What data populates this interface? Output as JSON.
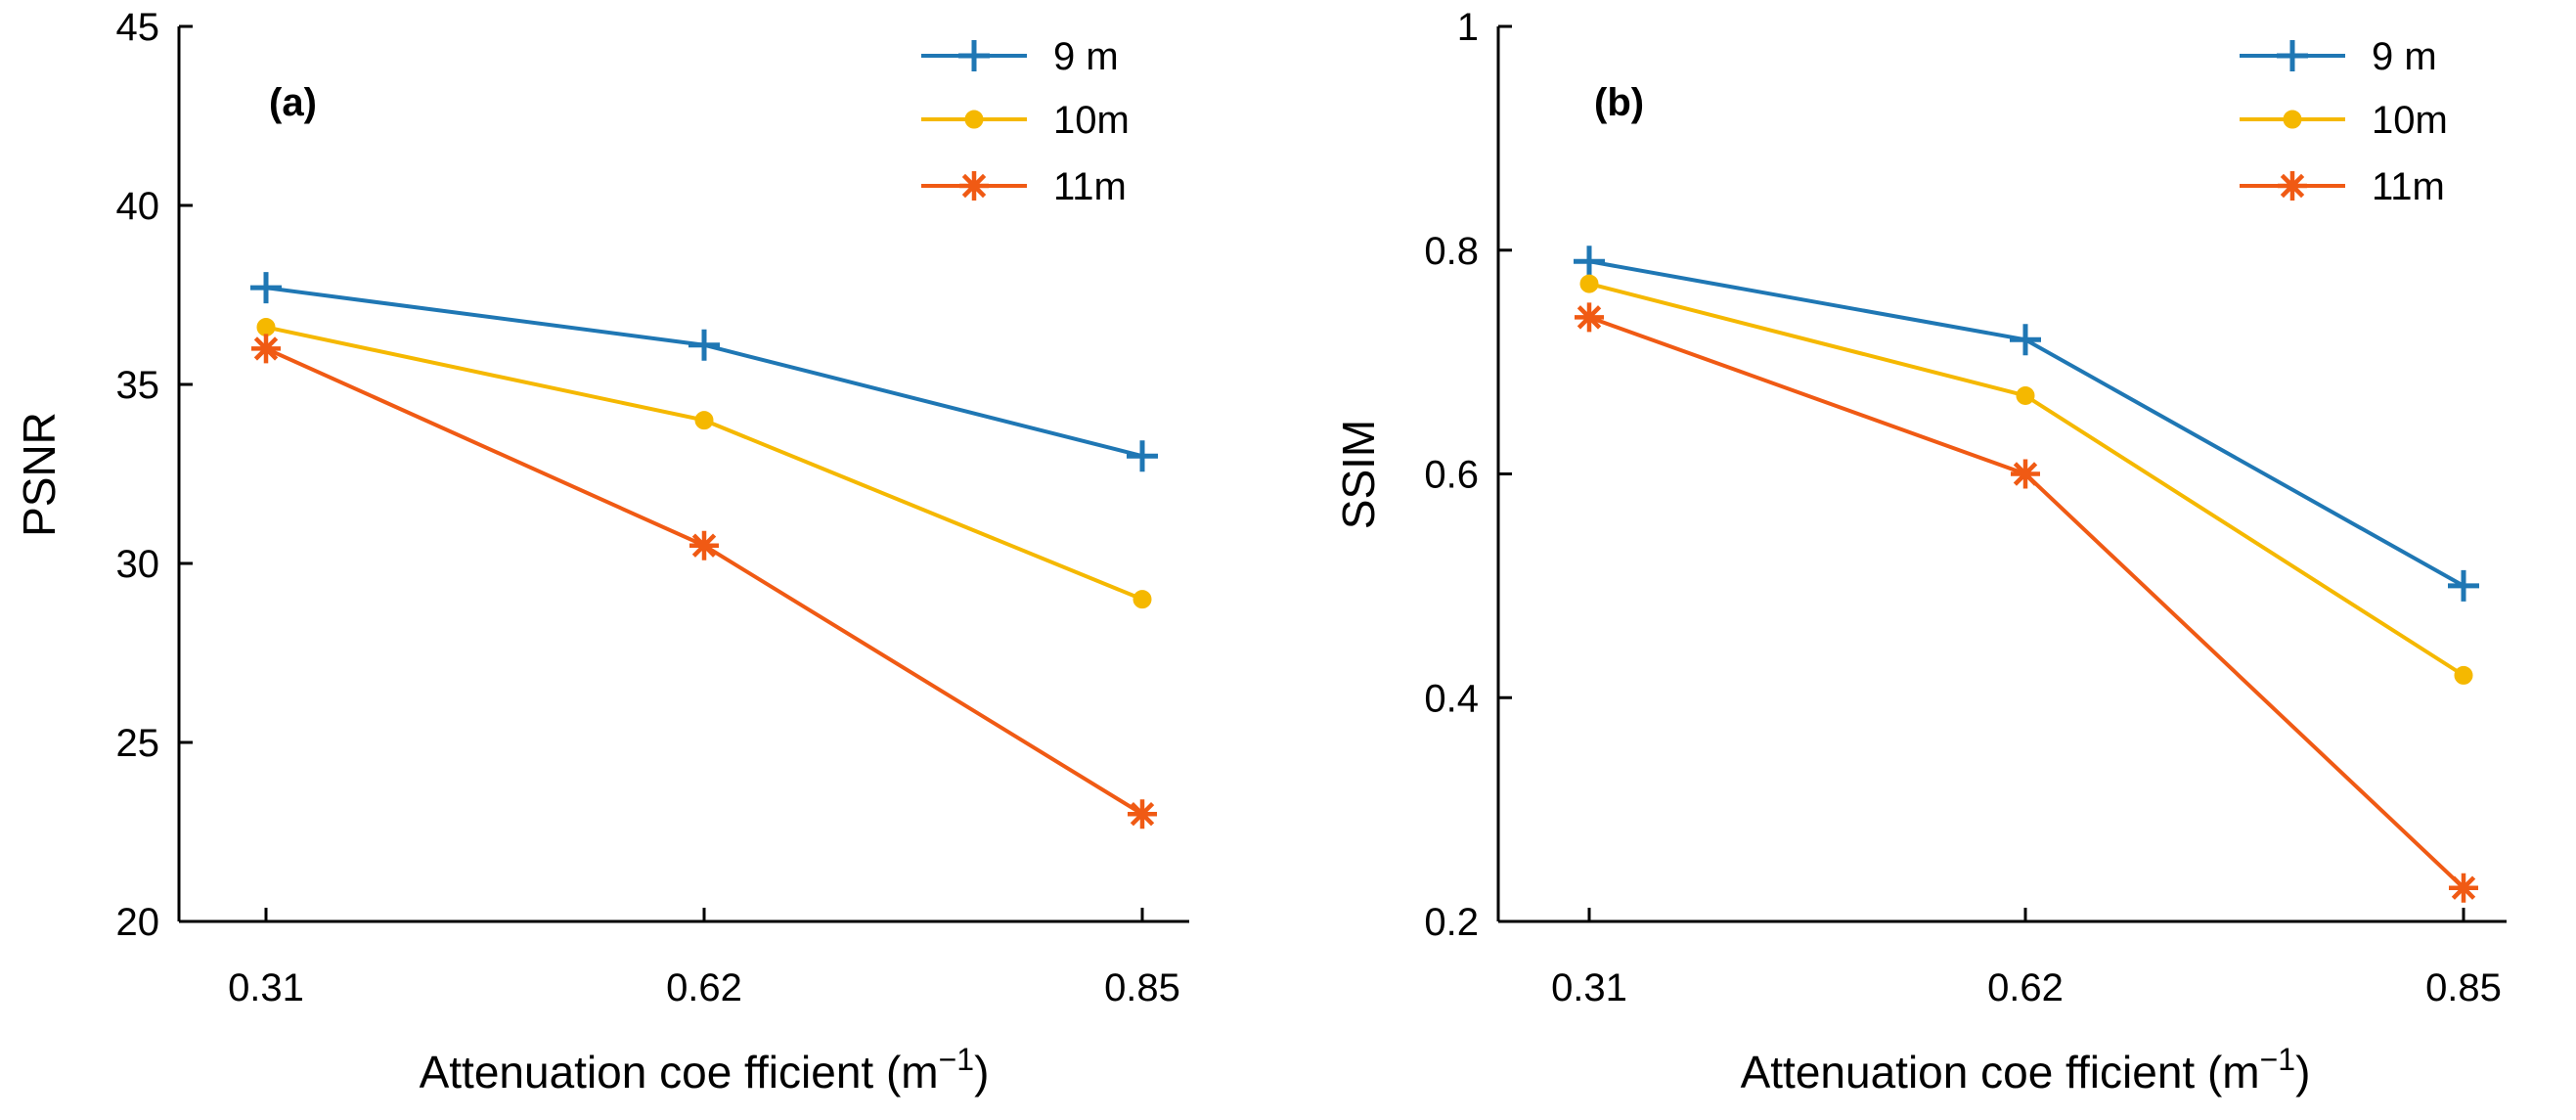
{
  "chart_data": [
    {
      "type": "line",
      "panel_label": "(a)",
      "title": "",
      "xlabel": "Attenuation coe fficient (m",
      "xlabel_sup": "−1",
      "xlabel_close": ")",
      "ylabel": "PSNR",
      "categories": [
        "0.31",
        "0.62",
        "0.85"
      ],
      "ylim": [
        20,
        45
      ],
      "yticks": [
        20,
        25,
        30,
        35,
        40,
        45
      ],
      "legend_position": "top-right",
      "series": [
        {
          "name": "9 m",
          "color": "#1f77b4",
          "marker": "plus",
          "values": [
            37.7,
            36.1,
            33.0
          ]
        },
        {
          "name": "10m",
          "color": "#f5b800",
          "marker": "circle",
          "values": [
            36.6,
            34.0,
            29.0
          ]
        },
        {
          "name": "11m",
          "color": "#f05a14",
          "marker": "asterisk",
          "values": [
            36.0,
            30.5,
            23.0
          ]
        }
      ]
    },
    {
      "type": "line",
      "panel_label": "(b)",
      "title": "",
      "xlabel": "Attenuation coe fficient (m",
      "xlabel_sup": "−1",
      "xlabel_close": ")",
      "ylabel": "SSIM",
      "categories": [
        "0.31",
        "0.62",
        "0.85"
      ],
      "ylim": [
        0.2,
        1.0
      ],
      "yticks": [
        0.2,
        0.4,
        0.6,
        0.8,
        1
      ],
      "ytick_labels": [
        "0.2",
        "0.4",
        "0.6",
        "0.8",
        "1"
      ],
      "legend_position": "top-right",
      "series": [
        {
          "name": "9 m",
          "color": "#1f77b4",
          "marker": "plus",
          "values": [
            0.79,
            0.72,
            0.5
          ]
        },
        {
          "name": "10m",
          "color": "#f5b800",
          "marker": "circle",
          "values": [
            0.77,
            0.67,
            0.42
          ]
        },
        {
          "name": "11m",
          "color": "#f05a14",
          "marker": "asterisk",
          "values": [
            0.74,
            0.6,
            0.23
          ]
        }
      ]
    }
  ]
}
